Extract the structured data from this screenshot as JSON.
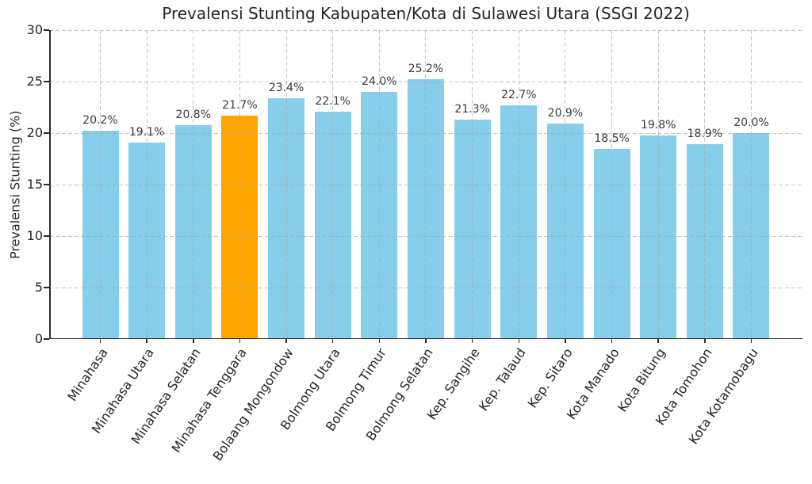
{
  "chart_data": {
    "type": "bar",
    "title": "Prevalensi Stunting Kabupaten/Kota di Sulawesi Utara (SSGI 2022)",
    "ylabel": "Prevalensi Stunting (%)",
    "categories": [
      "Minahasa",
      "Minahasa Utara",
      "Minahasa Selatan",
      "Minahasa Tenggara",
      "Bolaang Mongondow",
      "Bolmong Utara",
      "Bolmong Timur",
      "Bolmong Selatan",
      "Kep. Sangihe",
      "Kep. Talaud",
      "Kep. Sitaro",
      "Kota Manado",
      "Kota Bitung",
      "Kota Tomohon",
      "Kota Kotamobagu"
    ],
    "values": [
      20.2,
      19.1,
      20.8,
      21.7,
      23.4,
      22.1,
      24.0,
      25.2,
      21.3,
      22.7,
      20.9,
      18.5,
      19.8,
      18.9,
      20.0
    ],
    "value_labels": [
      "20.2%",
      "19.1%",
      "20.8%",
      "21.7%",
      "23.4%",
      "22.1%",
      "24.0%",
      "25.2%",
      "21.3%",
      "22.7%",
      "20.9%",
      "18.5%",
      "19.8%",
      "18.9%",
      "20.0%"
    ],
    "highlight_index": 3,
    "highlighted_category": "Minahasa Tenggara",
    "ylim": [
      0,
      30
    ],
    "yticks": [
      0,
      5,
      10,
      15,
      20,
      25,
      30
    ],
    "grid": "both-dashed",
    "legend": "none",
    "colors": {
      "bar": "#87CEEB",
      "highlight": "#FFA500",
      "axis": "#2a2a2a",
      "text": "#262626",
      "grid": "#a5a5a5",
      "background": "#ffffff"
    }
  }
}
